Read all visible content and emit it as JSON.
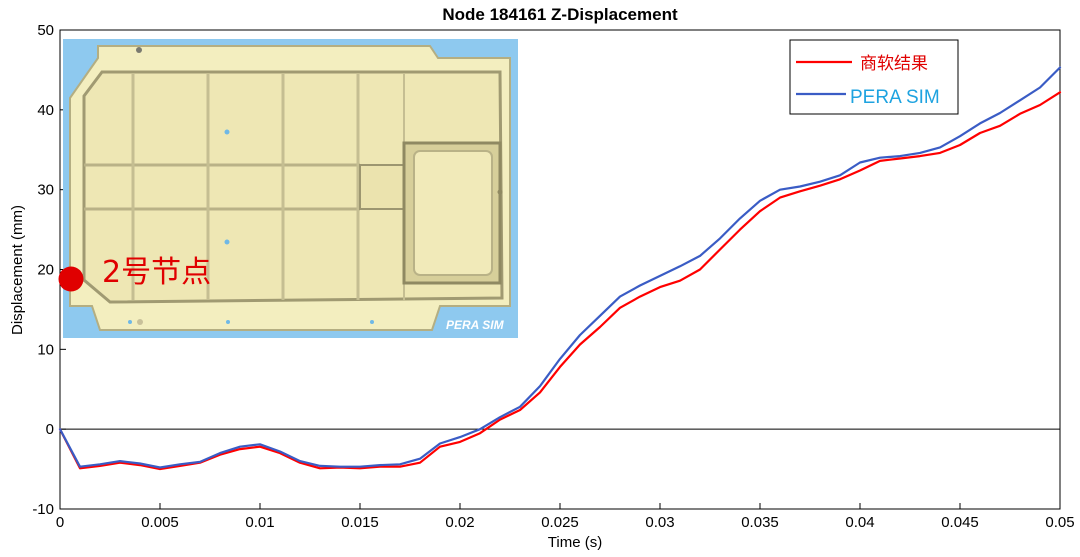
{
  "chart_data": {
    "type": "line",
    "title": "Node 184161 Z-Displacement",
    "xlabel": "Time (s)",
    "ylabel": "Displacement (mm)",
    "xlim": [
      0,
      0.05
    ],
    "ylim": [
      -10,
      50
    ],
    "x_ticks": [
      "0",
      "0.005",
      "0.01",
      "0.015",
      "0.02",
      "0.025",
      "0.03",
      "0.035",
      "0.04",
      "0.045",
      "0.05"
    ],
    "y_ticks": [
      "-10",
      "0",
      "10",
      "20",
      "30",
      "40",
      "50"
    ],
    "grid": false,
    "zero_line": true,
    "legend_position": "top-right",
    "series": [
      {
        "name": "商软结果",
        "color": "#ff0000",
        "x": [
          0,
          0.001,
          0.002,
          0.003,
          0.004,
          0.005,
          0.006,
          0.007,
          0.008,
          0.009,
          0.01,
          0.011,
          0.012,
          0.013,
          0.014,
          0.015,
          0.016,
          0.017,
          0.018,
          0.019,
          0.02,
          0.021,
          0.022,
          0.023,
          0.024,
          0.025,
          0.026,
          0.027,
          0.028,
          0.029,
          0.03,
          0.031,
          0.032,
          0.033,
          0.034,
          0.035,
          0.036,
          0.037,
          0.038,
          0.039,
          0.04,
          0.041,
          0.042,
          0.043,
          0.044,
          0.045,
          0.046,
          0.047,
          0.048,
          0.049,
          0.05
        ],
        "y": [
          0,
          -4.9,
          -4.6,
          -4.2,
          -4.5,
          -5.0,
          -4.6,
          -4.2,
          -3.2,
          -2.5,
          -2.2,
          -3.0,
          -4.2,
          -4.9,
          -4.8,
          -4.9,
          -4.7,
          -4.7,
          -4.2,
          -2.2,
          -1.6,
          -0.5,
          1.2,
          2.4,
          4.6,
          7.8,
          10.6,
          12.8,
          15.2,
          16.6,
          17.8,
          18.6,
          20.0,
          22.5,
          25.0,
          27.3,
          29.0,
          29.8,
          30.5,
          31.3,
          32.4,
          33.6,
          33.9,
          34.2,
          34.6,
          35.6,
          37.1,
          38.0,
          39.5,
          40.6,
          42.2
        ]
      },
      {
        "name": "PERA SIM",
        "color": "#3a5cc5",
        "x": [
          0,
          0.001,
          0.002,
          0.003,
          0.004,
          0.005,
          0.006,
          0.007,
          0.008,
          0.009,
          0.01,
          0.011,
          0.012,
          0.013,
          0.014,
          0.015,
          0.016,
          0.017,
          0.018,
          0.019,
          0.02,
          0.021,
          0.022,
          0.023,
          0.024,
          0.025,
          0.026,
          0.027,
          0.028,
          0.029,
          0.03,
          0.031,
          0.032,
          0.033,
          0.034,
          0.035,
          0.036,
          0.037,
          0.038,
          0.039,
          0.04,
          0.041,
          0.042,
          0.043,
          0.044,
          0.045,
          0.046,
          0.047,
          0.048,
          0.049,
          0.05
        ],
        "y": [
          0,
          -4.7,
          -4.4,
          -4.0,
          -4.3,
          -4.8,
          -4.4,
          -4.1,
          -3.0,
          -2.2,
          -1.9,
          -2.8,
          -4.0,
          -4.6,
          -4.7,
          -4.7,
          -4.5,
          -4.4,
          -3.7,
          -1.8,
          -1.0,
          0.0,
          1.5,
          2.8,
          5.4,
          8.8,
          11.8,
          14.2,
          16.6,
          18.0,
          19.2,
          20.4,
          21.7,
          23.9,
          26.4,
          28.6,
          30.0,
          30.4,
          31.0,
          31.8,
          33.4,
          34.0,
          34.2,
          34.6,
          35.3,
          36.7,
          38.3,
          39.6,
          41.2,
          42.8,
          45.3
        ]
      }
    ]
  },
  "inset": {
    "node_label": "2号节点",
    "logo": "PERA SIM",
    "colors": {
      "background": "#8ec9ef",
      "panel": "#f3eebf",
      "panel_edge": "#b4ae82",
      "marker": "#e00000"
    }
  }
}
